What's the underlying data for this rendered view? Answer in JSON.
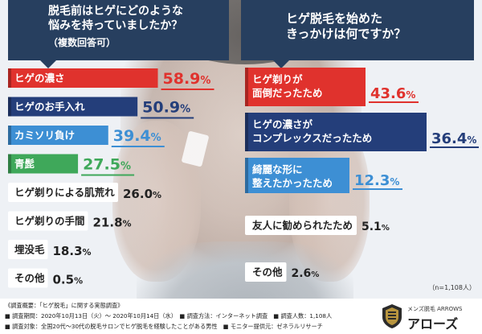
{
  "chart_data": [
    {
      "type": "bar",
      "title": "脱毛前はヒゲにどのような\n悩みを持っていましたか？",
      "subtitle": "（複数回答可）",
      "categories": [
        "ヒゲの濃さ",
        "ヒゲのお手入れ",
        "カミソリ負け",
        "青髭",
        "ヒゲ剃りによる肌荒れ",
        "ヒゲ剃りの手間",
        "埋没毛",
        "その他"
      ],
      "values": [
        58.9,
        50.9,
        39.4,
        27.5,
        26.0,
        21.8,
        18.3,
        0.5
      ],
      "value_labels": [
        "58.9%",
        "50.9%",
        "39.4%",
        "27.5%",
        "26.0%",
        "21.8%",
        "18.3%",
        "0.5%"
      ],
      "colors": [
        "#e0322d",
        "#243e7a",
        "#3d8fd4",
        "#3fa85a",
        "#ffffff",
        "#ffffff",
        "#ffffff",
        "#ffffff"
      ],
      "value_colors": [
        "#e0322d",
        "#243e7a",
        "#3d8fd4",
        "#3fa85a",
        "#222222",
        "#222222",
        "#222222",
        "#222222"
      ]
    },
    {
      "type": "bar",
      "title": "ヒゲ脱毛を始めた\nきっかけは何ですか？",
      "categories": [
        "ヒゲ剃りが\n面倒だったため",
        "ヒゲの濃さが\nコンプレックスだったため",
        "綺麗な形に\n整えたかったため",
        "友人に勧められたため",
        "その他"
      ],
      "values": [
        43.6,
        36.4,
        12.3,
        5.1,
        2.6
      ],
      "value_labels": [
        "43.6%",
        "36.4%",
        "12.3%",
        "5.1%",
        "2.6%"
      ],
      "colors": [
        "#e0322d",
        "#243e7a",
        "#3d8fd4",
        "#ffffff",
        "#ffffff"
      ],
      "value_colors": [
        "#e0322d",
        "#243e7a",
        "#3d8fd4",
        "#222222",
        "#222222"
      ]
    }
  ],
  "sample_note": "（n=1,108人）",
  "footer": {
    "line1": "《調査概要：「ヒゲ脱毛」に関する実態調査》",
    "line2": "■ 調査期間：2020年10月13日（火）～ 2020年10月14日（水）　■ 調査方法：インターネット調査　■ 調査人数：1,108人",
    "line3": "■ 調査対象：全国20代～30代の脱毛サロンでヒゲ脱毛を経験したことがある男性　■ モニター提供元：ゼネラルリサーチ"
  },
  "logo": {
    "sub": "メンズ脱毛 ARROWS",
    "name": "アローズ",
    "icon": "arrows-shield-logo"
  }
}
